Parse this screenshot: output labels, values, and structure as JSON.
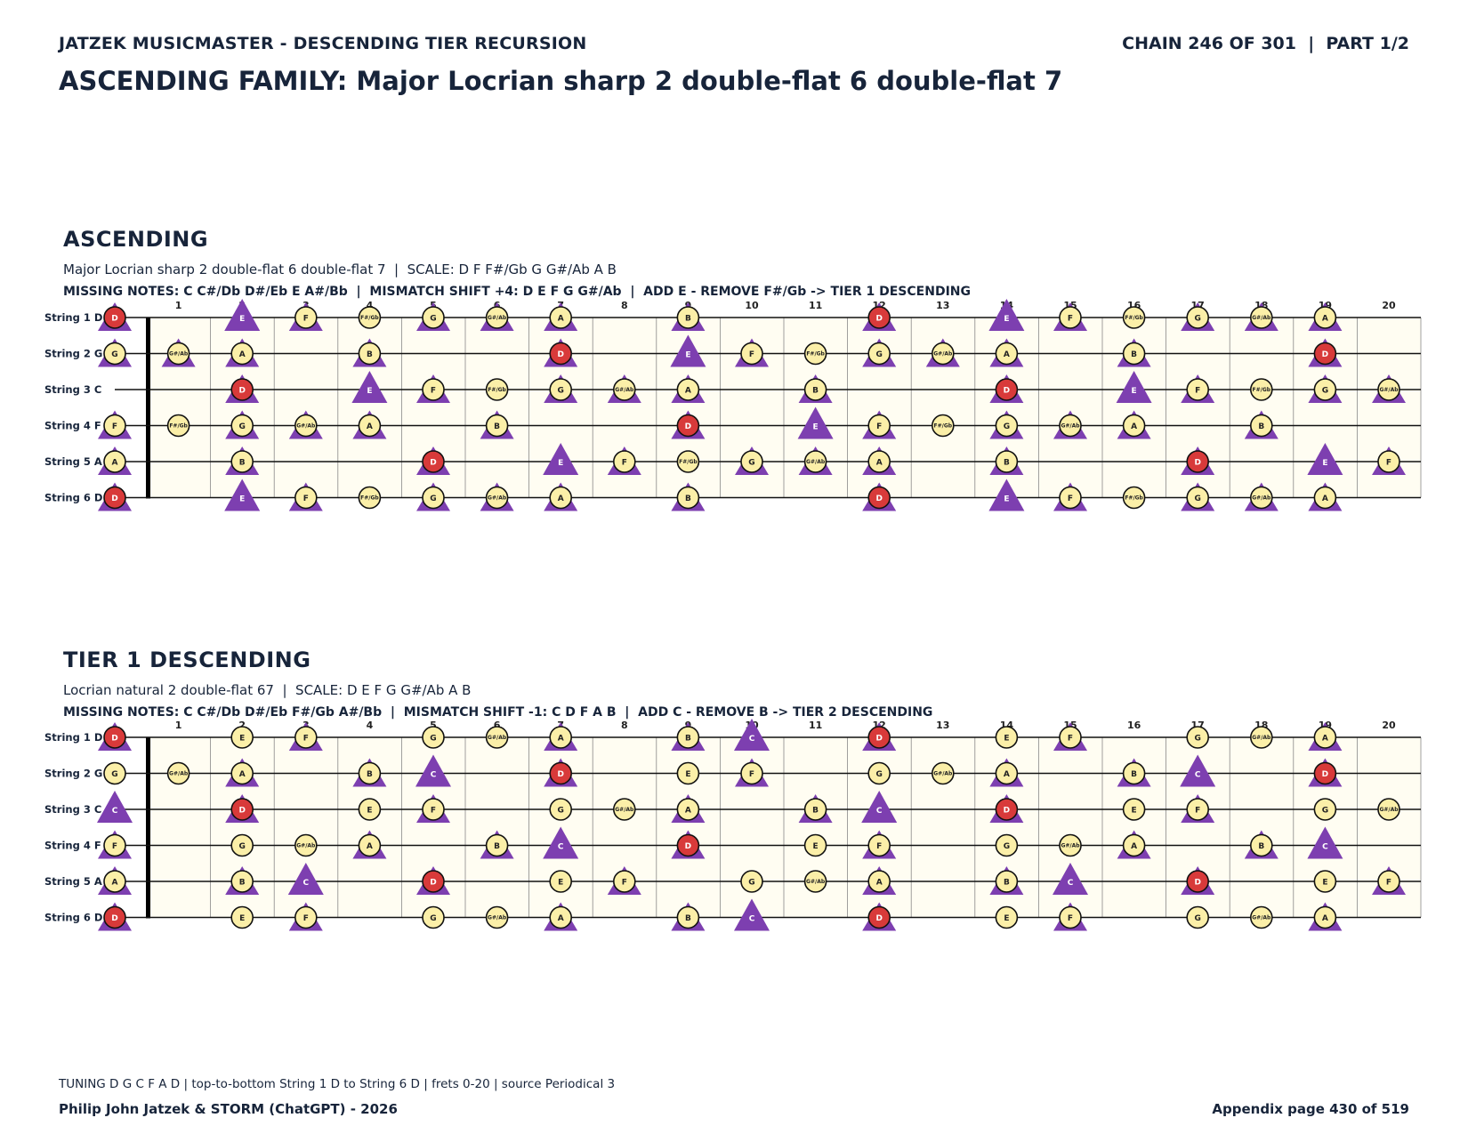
{
  "header": {
    "left": "JATZEK MUSICMASTER - DESCENDING TIER RECURSION",
    "right": "CHAIN 246 OF 301  |  PART 1/2",
    "title": "ASCENDING FAMILY: Major Locrian sharp 2 double-flat 6 double-flat 7"
  },
  "colors": {
    "root": "#d83a3a",
    "note": "#fbefa8",
    "triangle": "#7d3fb0",
    "board": "#fffdf2",
    "text": "#17243a"
  },
  "strings": [
    {
      "label": "String 1 D",
      "open": "D"
    },
    {
      "label": "String 2 G",
      "open": "G"
    },
    {
      "label": "String 3 C",
      "open": "C"
    },
    {
      "label": "String 4 F",
      "open": "F"
    },
    {
      "label": "String 5 A",
      "open": "A"
    },
    {
      "label": "String 6 D",
      "open": "D"
    }
  ],
  "fret_count": 20,
  "sections": [
    {
      "title": "ASCENDING",
      "subtitle": "Major Locrian sharp 2 double-flat 6 double-flat 7  |  SCALE: D F F#/Gb G G#/Ab A B",
      "info": "MISSING NOTES: C C#/Db D#/Eb E A#/Bb  |  MISMATCH SHIFT +4: D E F G G#/Ab  |  ADD E - REMOVE F#/Gb -> TIER 1 DESCENDING",
      "root": "D",
      "scale": [
        "D",
        "F",
        "F#/Gb",
        "G",
        "G#/Ab",
        "A",
        "B"
      ],
      "target": [
        "D",
        "E",
        "F",
        "G",
        "G#/Ab",
        "A",
        "B"
      ]
    },
    {
      "title": "TIER 1 DESCENDING",
      "subtitle": "Locrian natural 2 double-flat 67  |  SCALE: D E F G G#/Ab A B",
      "info": "MISSING NOTES: C C#/Db D#/Eb F#/Gb A#/Bb  |  MISMATCH SHIFT -1: C D F A B  |  ADD C - REMOVE B -> TIER 2 DESCENDING",
      "root": "D",
      "scale": [
        "D",
        "E",
        "F",
        "G",
        "G#/Ab",
        "A",
        "B"
      ],
      "target": [
        "C",
        "D",
        "F",
        "A",
        "B"
      ]
    }
  ],
  "footer": {
    "tuning": "TUNING D G C F A D | top-to-bottom String 1 D to String 6 D | frets 0-20 | source Periodical 3",
    "left": "Philip John Jatzek & STORM (ChatGPT) - 2026",
    "right": "Appendix page 430 of 519"
  }
}
